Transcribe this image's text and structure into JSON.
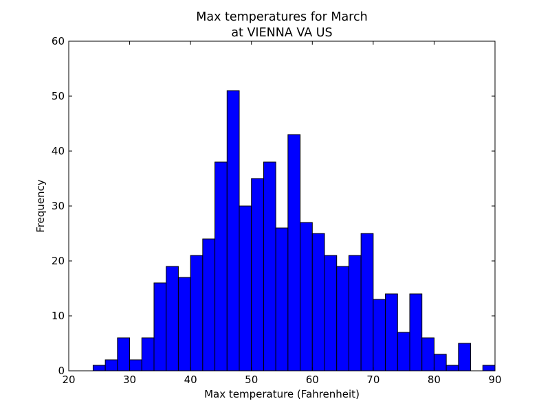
{
  "chart_data": {
    "type": "bar",
    "title": "Max temperatures for March",
    "subtitle": "at VIENNA VA US",
    "xlabel": "Max temperature (Fahrenheit)",
    "ylabel": "Frequency",
    "xlim": [
      20,
      90
    ],
    "ylim": [
      0,
      60
    ],
    "xticks": [
      "20",
      "30",
      "40",
      "50",
      "60",
      "70",
      "80",
      "90"
    ],
    "yticks": [
      "0",
      "10",
      "20",
      "30",
      "40",
      "50",
      "60"
    ],
    "grid": false,
    "bar_color": "#0000ff",
    "bins": [
      {
        "x0": 24.0,
        "x1": 26.0,
        "value": 1
      },
      {
        "x0": 26.0,
        "x1": 28.0,
        "value": 2
      },
      {
        "x0": 28.0,
        "x1": 30.0,
        "value": 6
      },
      {
        "x0": 30.0,
        "x1": 32.0,
        "value": 2
      },
      {
        "x0": 32.0,
        "x1": 34.0,
        "value": 6
      },
      {
        "x0": 34.0,
        "x1": 36.0,
        "value": 16
      },
      {
        "x0": 36.0,
        "x1": 38.0,
        "value": 19
      },
      {
        "x0": 38.0,
        "x1": 40.0,
        "value": 17
      },
      {
        "x0": 40.0,
        "x1": 42.0,
        "value": 21
      },
      {
        "x0": 42.0,
        "x1": 44.0,
        "value": 24
      },
      {
        "x0": 44.0,
        "x1": 46.0,
        "value": 38
      },
      {
        "x0": 46.0,
        "x1": 48.0,
        "value": 51
      },
      {
        "x0": 48.0,
        "x1": 50.0,
        "value": 30
      },
      {
        "x0": 50.0,
        "x1": 52.0,
        "value": 35
      },
      {
        "x0": 52.0,
        "x1": 54.0,
        "value": 38
      },
      {
        "x0": 54.0,
        "x1": 56.0,
        "value": 26
      },
      {
        "x0": 56.0,
        "x1": 58.0,
        "value": 43
      },
      {
        "x0": 58.0,
        "x1": 60.0,
        "value": 27
      },
      {
        "x0": 60.0,
        "x1": 62.0,
        "value": 25
      },
      {
        "x0": 62.0,
        "x1": 64.0,
        "value": 21
      },
      {
        "x0": 64.0,
        "x1": 66.0,
        "value": 19
      },
      {
        "x0": 66.0,
        "x1": 68.0,
        "value": 21
      },
      {
        "x0": 68.0,
        "x1": 70.0,
        "value": 25
      },
      {
        "x0": 70.0,
        "x1": 72.0,
        "value": 13
      },
      {
        "x0": 72.0,
        "x1": 74.0,
        "value": 14
      },
      {
        "x0": 74.0,
        "x1": 76.0,
        "value": 7
      },
      {
        "x0": 76.0,
        "x1": 78.0,
        "value": 14
      },
      {
        "x0": 78.0,
        "x1": 80.0,
        "value": 6
      },
      {
        "x0": 80.0,
        "x1": 82.0,
        "value": 3
      },
      {
        "x0": 82.0,
        "x1": 84.0,
        "value": 1
      },
      {
        "x0": 84.0,
        "x1": 86.0,
        "value": 5
      },
      {
        "x0": 86.0,
        "x1": 88.0,
        "value": 0
      },
      {
        "x0": 88.0,
        "x1": 90.0,
        "value": 1
      }
    ]
  }
}
